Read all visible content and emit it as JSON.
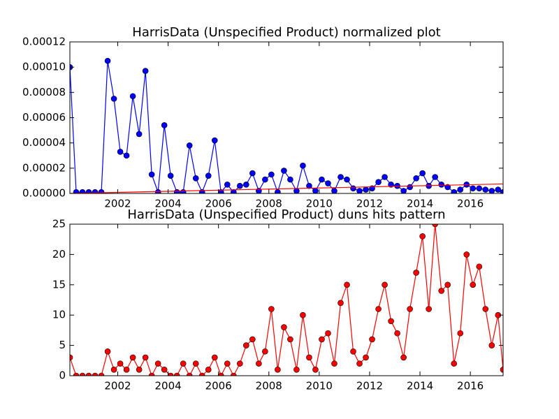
{
  "chart_data": [
    {
      "type": "line",
      "title": "HarrisData (Unspecified Product) normalized plot",
      "x": [
        2000.1,
        2000.35,
        2000.6,
        2000.85,
        2001.1,
        2001.35,
        2001.6,
        2001.85,
        2002.1,
        2002.35,
        2002.6,
        2002.85,
        2003.1,
        2003.35,
        2003.6,
        2003.85,
        2004.1,
        2004.35,
        2004.6,
        2004.85,
        2005.1,
        2005.35,
        2005.6,
        2005.85,
        2006.1,
        2006.35,
        2006.6,
        2006.85,
        2007.1,
        2007.35,
        2007.6,
        2007.85,
        2008.1,
        2008.35,
        2008.6,
        2008.85,
        2009.1,
        2009.35,
        2009.6,
        2009.85,
        2010.1,
        2010.35,
        2010.6,
        2010.85,
        2011.1,
        2011.35,
        2011.6,
        2011.85,
        2012.1,
        2012.35,
        2012.6,
        2012.85,
        2013.1,
        2013.35,
        2013.6,
        2013.85,
        2014.1,
        2014.35,
        2014.6,
        2014.85,
        2015.1,
        2015.35,
        2015.6,
        2015.85,
        2016.1,
        2016.35,
        2016.6,
        2016.85,
        2017.1,
        2017.3
      ],
      "series": [
        {
          "color": "#0000ff",
          "markers": true,
          "values": [
            0.0001,
            1e-06,
            1e-06,
            1e-06,
            1e-06,
            1e-06,
            0.000105,
            7.5e-05,
            3.3e-05,
            3e-05,
            7.7e-05,
            4.7e-05,
            9.7e-05,
            1.5e-05,
            1e-06,
            5.4e-05,
            1.4e-05,
            1e-06,
            1e-06,
            3.8e-05,
            1.2e-05,
            1e-06,
            1.4e-05,
            4.2e-05,
            1e-06,
            7e-06,
            1e-06,
            6e-06,
            7e-06,
            1.6e-05,
            2e-06,
            1.1e-05,
            1.5e-05,
            1e-06,
            1.8e-05,
            1.1e-05,
            2e-06,
            2.2e-05,
            6e-06,
            2e-06,
            1.1e-05,
            8e-06,
            2e-06,
            1.3e-05,
            1.1e-05,
            4e-06,
            2e-06,
            3e-06,
            4e-06,
            9e-06,
            1.3e-05,
            7e-06,
            6e-06,
            2e-06,
            5e-06,
            1.2e-05,
            1.6e-05,
            6e-06,
            1.3e-05,
            7e-06,
            5e-06,
            1e-06,
            3e-06,
            7e-06,
            4e-06,
            4e-06,
            3e-06,
            2e-06,
            3e-06,
            1e-06
          ]
        },
        {
          "color": "#ff0000",
          "markers": false,
          "x": [
            2000.1,
            2017.3
          ],
          "values": [
            0,
            7.5e-06
          ]
        }
      ],
      "xlim": [
        2000.1,
        2017.3
      ],
      "ylim": [
        0,
        0.00012
      ],
      "xticks": [
        2002,
        2004,
        2006,
        2008,
        2010,
        2012,
        2014,
        2016
      ],
      "yticks": [
        {
          "value": 0,
          "label": "0.00000"
        },
        {
          "value": 2e-05,
          "label": "0.00002"
        },
        {
          "value": 4e-05,
          "label": "0.00004"
        },
        {
          "value": 6e-05,
          "label": "0.00006"
        },
        {
          "value": 8e-05,
          "label": "0.00008"
        },
        {
          "value": 0.0001,
          "label": "0.00010"
        },
        {
          "value": 0.00012,
          "label": "0.00012"
        }
      ]
    },
    {
      "type": "line",
      "title": "HarrisData (Unspecified Product) duns hits pattern",
      "x": [
        2000.1,
        2000.35,
        2000.6,
        2000.85,
        2001.1,
        2001.35,
        2001.6,
        2001.85,
        2002.1,
        2002.35,
        2002.6,
        2002.85,
        2003.1,
        2003.35,
        2003.6,
        2003.85,
        2004.1,
        2004.35,
        2004.6,
        2004.85,
        2005.1,
        2005.35,
        2005.6,
        2005.85,
        2006.1,
        2006.35,
        2006.6,
        2006.85,
        2007.1,
        2007.35,
        2007.6,
        2007.85,
        2008.1,
        2008.35,
        2008.6,
        2008.85,
        2009.1,
        2009.35,
        2009.6,
        2009.85,
        2010.1,
        2010.35,
        2010.6,
        2010.85,
        2011.1,
        2011.35,
        2011.6,
        2011.85,
        2012.1,
        2012.35,
        2012.6,
        2012.85,
        2013.1,
        2013.35,
        2013.6,
        2013.85,
        2014.1,
        2014.35,
        2014.6,
        2014.85,
        2015.1,
        2015.35,
        2015.6,
        2015.85,
        2016.1,
        2016.35,
        2016.6,
        2016.85,
        2017.1,
        2017.3
      ],
      "series": [
        {
          "color": "#ff0000",
          "markers": true,
          "values": [
            3,
            0,
            0,
            0,
            0,
            0,
            4,
            1,
            2,
            1,
            3,
            1,
            3,
            0,
            2,
            1,
            0,
            0,
            2,
            0,
            2,
            0,
            1,
            3,
            0,
            2,
            0,
            2,
            5,
            6,
            2,
            4,
            11,
            1,
            8,
            6,
            1,
            10,
            3,
            1,
            6,
            7,
            2,
            12,
            15,
            4,
            2,
            3,
            6,
            11,
            15,
            9,
            7,
            3,
            11,
            17,
            23,
            11,
            25,
            14,
            15,
            2,
            7,
            20,
            15,
            18,
            11,
            5,
            10,
            1
          ]
        }
      ],
      "xlim": [
        2000.1,
        2017.3
      ],
      "ylim": [
        0,
        25
      ],
      "xticks": [
        2002,
        2004,
        2006,
        2008,
        2010,
        2012,
        2014,
        2016
      ],
      "yticks": [
        0,
        5,
        10,
        15,
        20,
        25
      ]
    }
  ]
}
